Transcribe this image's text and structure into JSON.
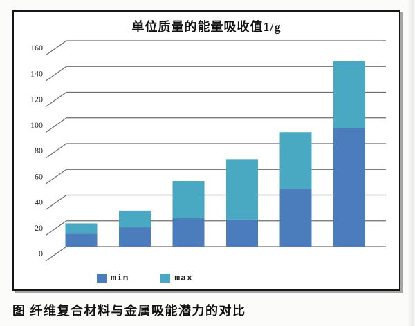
{
  "chart_data": {
    "type": "bar",
    "stacked": true,
    "title": "单位质量的能量吸收值1/g",
    "categories": [
      "",
      "",
      "",
      "",
      "",
      ""
    ],
    "series": [
      {
        "name": "min",
        "color": "#4b7dbd",
        "values": [
          10,
          15,
          22,
          21,
          45,
          92
        ]
      },
      {
        "name": "max",
        "color": "#49a9c2",
        "values": [
          18,
          28,
          51,
          68,
          89,
          144
        ]
      }
    ],
    "value_semantics": "blue segment spans 0 to min; teal segment spans min to max (bar top = max)",
    "xlabel": "",
    "ylabel": "",
    "ylim": [
      0,
      160
    ],
    "yticks": [
      0,
      20,
      40,
      60,
      80,
      100,
      120,
      140,
      160
    ],
    "grid": true,
    "legend_position": "bottom-inside"
  },
  "legend": {
    "items": [
      {
        "label": "min",
        "color": "#4b7dbd"
      },
      {
        "label": "max",
        "color": "#49a9c2"
      }
    ]
  },
  "caption": {
    "text": "图 纤维复合材料与金属吸能潜力的对比"
  },
  "colors": {
    "bar_min": "#4b7dbd",
    "bar_max": "#49a9c2",
    "gridline": "#6e6e6e",
    "box_border": "#161616",
    "text": "#1c1c1c"
  }
}
